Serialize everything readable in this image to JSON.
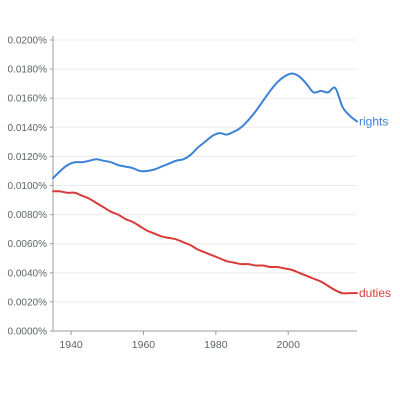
{
  "chart_data": {
    "type": "line",
    "title": "",
    "xlabel": "",
    "ylabel": "",
    "xlim": [
      1935,
      2019
    ],
    "ylim": [
      0,
      0.0002
    ],
    "grid": true,
    "legend": "inline-right",
    "x_ticks": [
      1940,
      1960,
      1980,
      2000
    ],
    "y_ticks": [
      0,
      2e-05,
      4e-05,
      6e-05,
      8e-05,
      0.0001,
      0.00012,
      0.00014,
      0.00016,
      0.00018,
      0.0002
    ],
    "y_tick_labels": [
      "0.0000%",
      "0.0020%",
      "0.0040%",
      "0.0060%",
      "0.0080%",
      "0.0100%",
      "0.0120%",
      "0.0140%",
      "0.0160%",
      "0.0180%",
      "0.0200%"
    ],
    "series": [
      {
        "name": "rights",
        "color": "#3c82d6",
        "x": [
          1935,
          1937,
          1939,
          1941,
          1943,
          1945,
          1947,
          1949,
          1951,
          1953,
          1955,
          1957,
          1959,
          1961,
          1963,
          1965,
          1967,
          1969,
          1971,
          1973,
          1975,
          1977,
          1979,
          1981,
          1983,
          1985,
          1987,
          1989,
          1991,
          1993,
          1995,
          1997,
          1999,
          2001,
          2003,
          2005,
          2007,
          2009,
          2011,
          2013,
          2015,
          2017,
          2019
        ],
        "values": [
          0.000105,
          0.00011,
          0.000114,
          0.000116,
          0.000116,
          0.000117,
          0.000118,
          0.000117,
          0.000116,
          0.000114,
          0.000113,
          0.000112,
          0.00011,
          0.00011,
          0.000111,
          0.000113,
          0.000115,
          0.000117,
          0.000118,
          0.000121,
          0.000126,
          0.00013,
          0.000134,
          0.000136,
          0.000135,
          0.000137,
          0.00014,
          0.000145,
          0.000151,
          0.000158,
          0.000165,
          0.000171,
          0.000175,
          0.000177,
          0.000175,
          0.00017,
          0.000164,
          0.000165,
          0.000164,
          0.000167,
          0.000154,
          0.000148,
          0.000144
        ]
      },
      {
        "name": "duties",
        "color": "#d93a3a",
        "x": [
          1935,
          1937,
          1939,
          1941,
          1943,
          1945,
          1947,
          1949,
          1951,
          1953,
          1955,
          1957,
          1959,
          1961,
          1963,
          1965,
          1967,
          1969,
          1971,
          1973,
          1975,
          1977,
          1979,
          1981,
          1983,
          1985,
          1987,
          1989,
          1991,
          1993,
          1995,
          1997,
          1999,
          2001,
          2003,
          2005,
          2007,
          2009,
          2011,
          2013,
          2015,
          2017,
          2019
        ],
        "values": [
          9.6e-05,
          9.6e-05,
          9.5e-05,
          9.5e-05,
          9.3e-05,
          9.1e-05,
          8.8e-05,
          8.5e-05,
          8.2e-05,
          8e-05,
          7.7e-05,
          7.5e-05,
          7.2e-05,
          6.9e-05,
          6.7e-05,
          6.5e-05,
          6.4e-05,
          6.3e-05,
          6.1e-05,
          5.9e-05,
          5.6e-05,
          5.4e-05,
          5.2e-05,
          5e-05,
          4.8e-05,
          4.7e-05,
          4.6e-05,
          4.6e-05,
          4.5e-05,
          4.5e-05,
          4.4e-05,
          4.4e-05,
          4.3e-05,
          4.2e-05,
          4e-05,
          3.8e-05,
          3.6e-05,
          3.4e-05,
          3.1e-05,
          2.8e-05,
          2.6e-05,
          2.6e-05,
          2.6e-05
        ]
      }
    ]
  },
  "colors": {
    "grid": "#ebebeb",
    "axis": "#9e9e9e",
    "tick_text": "#5f6368"
  }
}
